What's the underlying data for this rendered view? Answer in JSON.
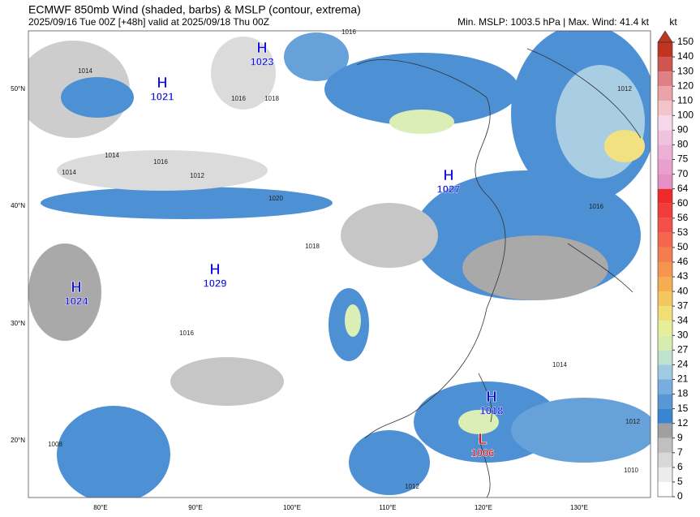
{
  "header": {
    "title": "ECMWF 850mb Wind (shaded, barbs) & MSLP (contour, extrema)",
    "subtitle": "2025/09/16 Tue 00Z [+48h] valid at 2025/09/18 Thu 00Z",
    "info": "Min. MSLP: 1003.5 hPa | Max. Wind: 41.4 kt"
  },
  "map": {
    "lat_labels": [
      "50°N",
      "40°N",
      "30°N",
      "20°N"
    ],
    "lon_labels": [
      "80°E",
      "90°E",
      "100°E",
      "110°E",
      "120°E",
      "130°E"
    ],
    "centers": [
      {
        "kind": "H",
        "value": 1023
      },
      {
        "kind": "H",
        "value": 1021
      },
      {
        "kind": "H",
        "value": 1027
      },
      {
        "kind": "H",
        "value": 1029
      },
      {
        "kind": "H",
        "value": 1024
      },
      {
        "kind": "H",
        "value": 1018
      },
      {
        "kind": "L",
        "value": 1006
      }
    ],
    "contour_labels": [
      1014,
      1016,
      1018,
      1014,
      1016,
      1012,
      1014,
      1018,
      1020,
      1016,
      1012,
      1016,
      1014,
      1012,
      1016,
      1008,
      1012,
      1010
    ]
  },
  "colorbar": {
    "unit": "kt",
    "levels": [
      0,
      5,
      6,
      7,
      9,
      12,
      15,
      18,
      21,
      24,
      27,
      30,
      34,
      37,
      40,
      43,
      46,
      50,
      53,
      56,
      60,
      64,
      70,
      75,
      80,
      90,
      100,
      110,
      120,
      130,
      140,
      150
    ],
    "colors": [
      "#ffffff",
      "#ececec",
      "#d8d8d8",
      "#c0c0c0",
      "#a0a0a0",
      "#3a85cf",
      "#5797d6",
      "#78ade0",
      "#a0c9e2",
      "#bfe2cc",
      "#d6edae",
      "#e6ef98",
      "#f1de74",
      "#f4c75e",
      "#f5ad52",
      "#f49550",
      "#f47d4f",
      "#f4664d",
      "#f4504a",
      "#f23c3c",
      "#ee2a2a",
      "#e690c6",
      "#e9a0cd",
      "#edb0d5",
      "#f0c2de",
      "#f6d8ea",
      "#f3c4ca",
      "#eaa3a9",
      "#df8184",
      "#cf5650",
      "#bf3520"
    ]
  }
}
